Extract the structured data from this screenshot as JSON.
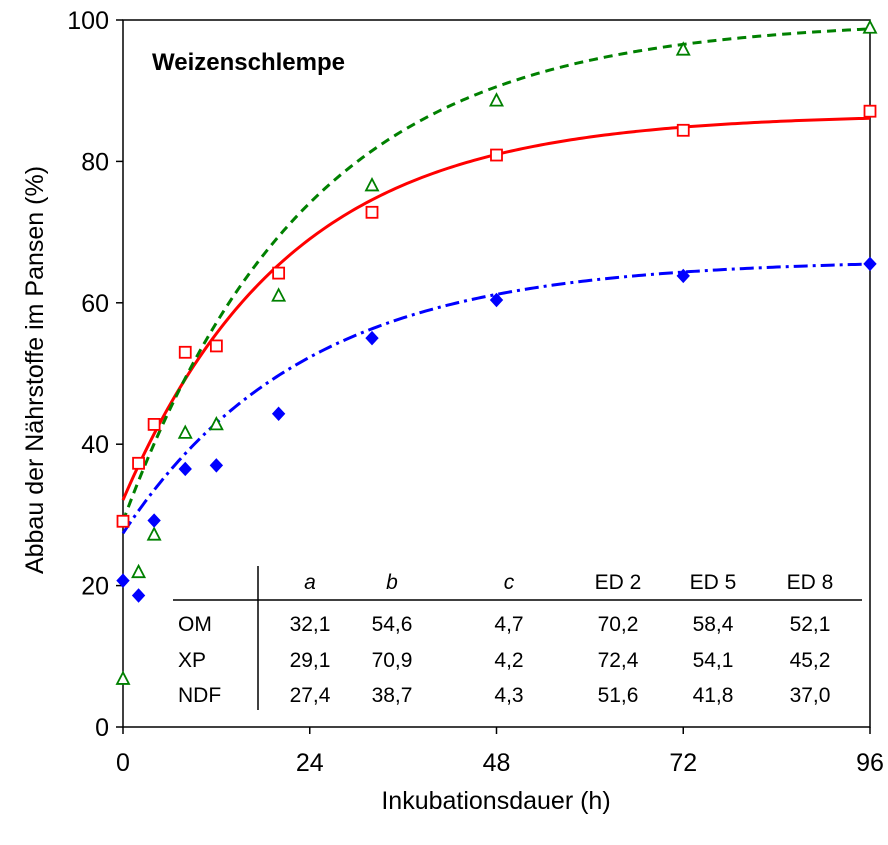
{
  "chart_data": {
    "type": "scatter",
    "title": "Weizenschlempe",
    "xlabel": "Inkubationsdauer (h)",
    "ylabel": "Abbau der Nährstoffe im Pansen (%)",
    "xlim": [
      0,
      96
    ],
    "ylim": [
      0,
      100
    ],
    "xticks": [
      "0",
      "24",
      "48",
      "72",
      "96"
    ],
    "yticks": [
      "0",
      "20",
      "40",
      "60",
      "80",
      "100"
    ],
    "grid": false,
    "legend": "none",
    "series": [
      {
        "name": "OM",
        "color": "#ff0000",
        "marker": "square-open",
        "line": "solid",
        "fit": {
          "a": 32.1,
          "b": 54.6,
          "c": 4.7
        },
        "x": [
          0,
          2,
          4,
          8,
          12,
          20,
          32,
          48,
          72,
          96
        ],
        "y": [
          29.1,
          37.3,
          42.8,
          53.0,
          53.9,
          64.2,
          72.8,
          80.9,
          84.4,
          87.1
        ]
      },
      {
        "name": "XP",
        "color": "#008000",
        "marker": "triangle-open",
        "line": "dashed",
        "fit": {
          "a": 29.1,
          "b": 70.9,
          "c": 4.2
        },
        "x": [
          0,
          2,
          4,
          8,
          12,
          20,
          32,
          48,
          72,
          96
        ],
        "y": [
          6.8,
          21.9,
          27.2,
          41.6,
          42.8,
          61.0,
          76.6,
          88.6,
          95.8,
          98.9
        ]
      },
      {
        "name": "NDF",
        "color": "#0000ff",
        "marker": "diamond-filled",
        "line": "dashdot",
        "fit": {
          "a": 27.4,
          "b": 38.7,
          "c": 4.3
        },
        "x": [
          0,
          2,
          4,
          8,
          12,
          20,
          32,
          48,
          72,
          96
        ],
        "y": [
          20.7,
          18.6,
          29.2,
          36.5,
          37.0,
          44.3,
          55.0,
          60.4,
          63.8,
          65.5
        ]
      }
    ],
    "table": {
      "headers": [
        "",
        "a",
        "b",
        "c",
        "ED 2",
        "ED 5",
        "ED 8"
      ],
      "rows": [
        [
          "OM",
          "32,1",
          "54,6",
          "4,7",
          "70,2",
          "58,4",
          "52,1"
        ],
        [
          "XP",
          "29,1",
          "70,9",
          "4,2",
          "72,4",
          "54,1",
          "45,2"
        ],
        [
          "NDF",
          "27,4",
          "38,7",
          "4,3",
          "51,6",
          "41,8",
          "37,0"
        ]
      ]
    }
  }
}
